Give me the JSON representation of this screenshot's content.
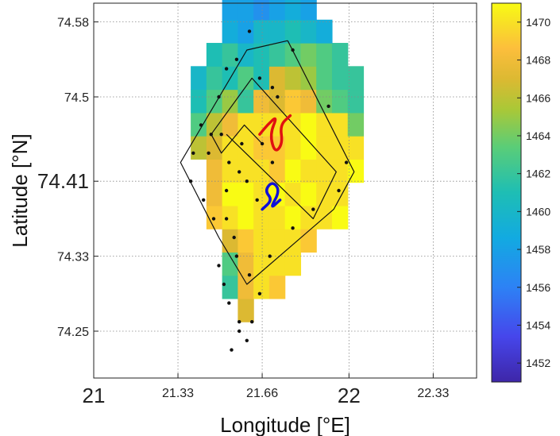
{
  "chart_data": {
    "type": "heatmap",
    "title": "",
    "xlabel": "Longitude [°E]",
    "ylabel": "Latitude [°N]",
    "xlim": [
      21,
      22.5
    ],
    "ylim": [
      74.2,
      74.6
    ],
    "x_ticks": [
      21,
      21.33,
      21.66,
      22,
      22.33
    ],
    "x_tick_labels": [
      "21",
      "21.33",
      "21.66",
      "22",
      "22.33"
    ],
    "y_ticks": [
      74.25,
      74.33,
      74.41,
      74.5,
      74.58
    ],
    "y_tick_labels": [
      "74.25",
      "74.33",
      "74.41",
      "74.5",
      "74.58"
    ],
    "grid": true,
    "colorbar": {
      "range": [
        1451,
        1471
      ],
      "ticks": [
        1452,
        1454,
        1456,
        1458,
        1460,
        1462,
        1464,
        1466,
        1468,
        1470
      ],
      "tick_labels": [
        "1452",
        "1454",
        "1456",
        "1458",
        "1460",
        "1462",
        "1464",
        "1466",
        "1468",
        "1470"
      ],
      "colormap": "parula"
    },
    "grid_cells": {
      "lon_start": 21.38,
      "lat_start": 74.26,
      "dlon": 0.0615,
      "dlat": 0.0248,
      "rows": [
        [
          null,
          null,
          null,
          1467,
          null,
          null,
          null,
          null,
          null,
          null,
          null
        ],
        [
          null,
          null,
          1462,
          1468,
          1470,
          1469,
          null,
          null,
          null,
          null,
          null
        ],
        [
          null,
          null,
          1463,
          1468,
          1470,
          1470,
          1470,
          null,
          null,
          null,
          null
        ],
        [
          null,
          null,
          1467,
          1469,
          1470,
          1470,
          1470,
          1469,
          null,
          null,
          null
        ],
        [
          null,
          1469,
          1470,
          1471,
          1470,
          1470,
          1471,
          1470,
          1470,
          1471,
          null
        ],
        [
          null,
          1468,
          1471,
          1471,
          1470,
          1471,
          1470,
          1471,
          1470,
          1470,
          null
        ],
        [
          null,
          1468,
          1470,
          1470,
          1470,
          1469,
          1471,
          1470,
          1470,
          1470,
          1471
        ],
        [
          1466,
          1467,
          1470,
          1470,
          1469,
          1469,
          1470,
          1471,
          1470,
          1470,
          1470
        ],
        [
          1463,
          1466,
          1468,
          1470,
          1470,
          1470,
          1470,
          1471,
          1470,
          1470,
          1464
        ],
        [
          1461,
          1463,
          1465,
          1462,
          1468,
          1467,
          1469,
          1468,
          1464,
          1463,
          1462
        ],
        [
          1460,
          1462,
          1461,
          1463,
          1461,
          1467,
          1466,
          1465,
          1463,
          1462,
          1462
        ],
        [
          null,
          1461,
          1462,
          1460,
          1461,
          1462,
          1463,
          1464,
          1463,
          1462,
          null
        ],
        [
          null,
          null,
          1459,
          1458,
          1460,
          1460,
          1461,
          1460,
          1459,
          null,
          null
        ],
        [
          null,
          null,
          1458,
          1458,
          1457,
          1458,
          1459,
          1458,
          null,
          null,
          null
        ],
        [
          null,
          null,
          1458,
          1457,
          1457,
          1457,
          1457,
          null,
          null,
          null,
          null
        ],
        [
          null,
          null,
          1458,
          1457,
          1458,
          1457,
          null,
          null,
          null,
          null,
          null
        ],
        [
          null,
          null,
          1457,
          1457,
          1457,
          null,
          null,
          null,
          null,
          null,
          null
        ]
      ]
    },
    "track": [
      [
        21.76,
        74.56
      ],
      [
        22.02,
        74.42
      ],
      [
        21.94,
        74.38
      ],
      [
        21.6,
        74.3
      ],
      [
        21.49,
        74.35
      ],
      [
        21.34,
        74.43
      ],
      [
        21.6,
        74.55
      ],
      [
        21.76,
        74.56
      ]
    ],
    "track2": [
      [
        21.52,
        74.46
      ],
      [
        21.86,
        74.37
      ],
      [
        21.95,
        74.42
      ],
      [
        21.62,
        74.52
      ],
      [
        21.46,
        74.46
      ],
      [
        21.5,
        74.44
      ],
      [
        21.59,
        74.47
      ],
      [
        21.66,
        74.45
      ]
    ],
    "stations": [
      [
        21.61,
        74.57
      ],
      [
        21.56,
        74.54
      ],
      [
        21.52,
        74.53
      ],
      [
        21.65,
        74.52
      ],
      [
        21.7,
        74.51
      ],
      [
        21.72,
        74.5
      ],
      [
        21.49,
        74.5
      ],
      [
        21.42,
        74.47
      ],
      [
        21.46,
        74.46
      ],
      [
        21.5,
        74.46
      ],
      [
        21.45,
        74.44
      ],
      [
        21.39,
        74.44
      ],
      [
        21.58,
        74.45
      ],
      [
        21.66,
        74.45
      ],
      [
        21.53,
        74.43
      ],
      [
        21.57,
        74.42
      ],
      [
        21.6,
        74.41
      ],
      [
        21.52,
        74.4
      ],
      [
        21.38,
        74.41
      ],
      [
        21.43,
        74.39
      ],
      [
        21.47,
        74.37
      ],
      [
        21.52,
        74.37
      ],
      [
        21.55,
        74.35
      ],
      [
        21.56,
        74.33
      ],
      [
        21.61,
        74.31
      ],
      [
        21.65,
        74.29
      ],
      [
        21.49,
        74.32
      ],
      [
        21.51,
        74.3
      ],
      [
        21.53,
        74.28
      ],
      [
        21.57,
        74.26
      ],
      [
        21.62,
        74.26
      ],
      [
        21.54,
        74.23
      ],
      [
        21.57,
        74.25
      ],
      [
        21.78,
        74.55
      ],
      [
        21.92,
        74.49
      ],
      [
        21.99,
        74.43
      ],
      [
        21.96,
        74.4
      ],
      [
        21.86,
        74.38
      ],
      [
        21.78,
        74.36
      ],
      [
        21.69,
        74.33
      ],
      [
        21.64,
        74.39
      ],
      [
        21.7,
        74.43
      ],
      [
        21.6,
        74.24
      ]
    ],
    "red_trajectory": [
      [
        21.65,
        74.46
      ],
      [
        21.68,
        74.47
      ],
      [
        21.72,
        74.48
      ],
      [
        21.69,
        74.46
      ],
      [
        21.71,
        74.44
      ],
      [
        21.74,
        74.45
      ],
      [
        21.73,
        74.47
      ],
      [
        21.77,
        74.48
      ]
    ],
    "blue_trajectory": [
      [
        21.66,
        74.38
      ],
      [
        21.7,
        74.39
      ],
      [
        21.67,
        74.4
      ],
      [
        21.7,
        74.41
      ],
      [
        21.73,
        74.4
      ],
      [
        21.69,
        74.38
      ],
      [
        21.73,
        74.39
      ]
    ]
  }
}
